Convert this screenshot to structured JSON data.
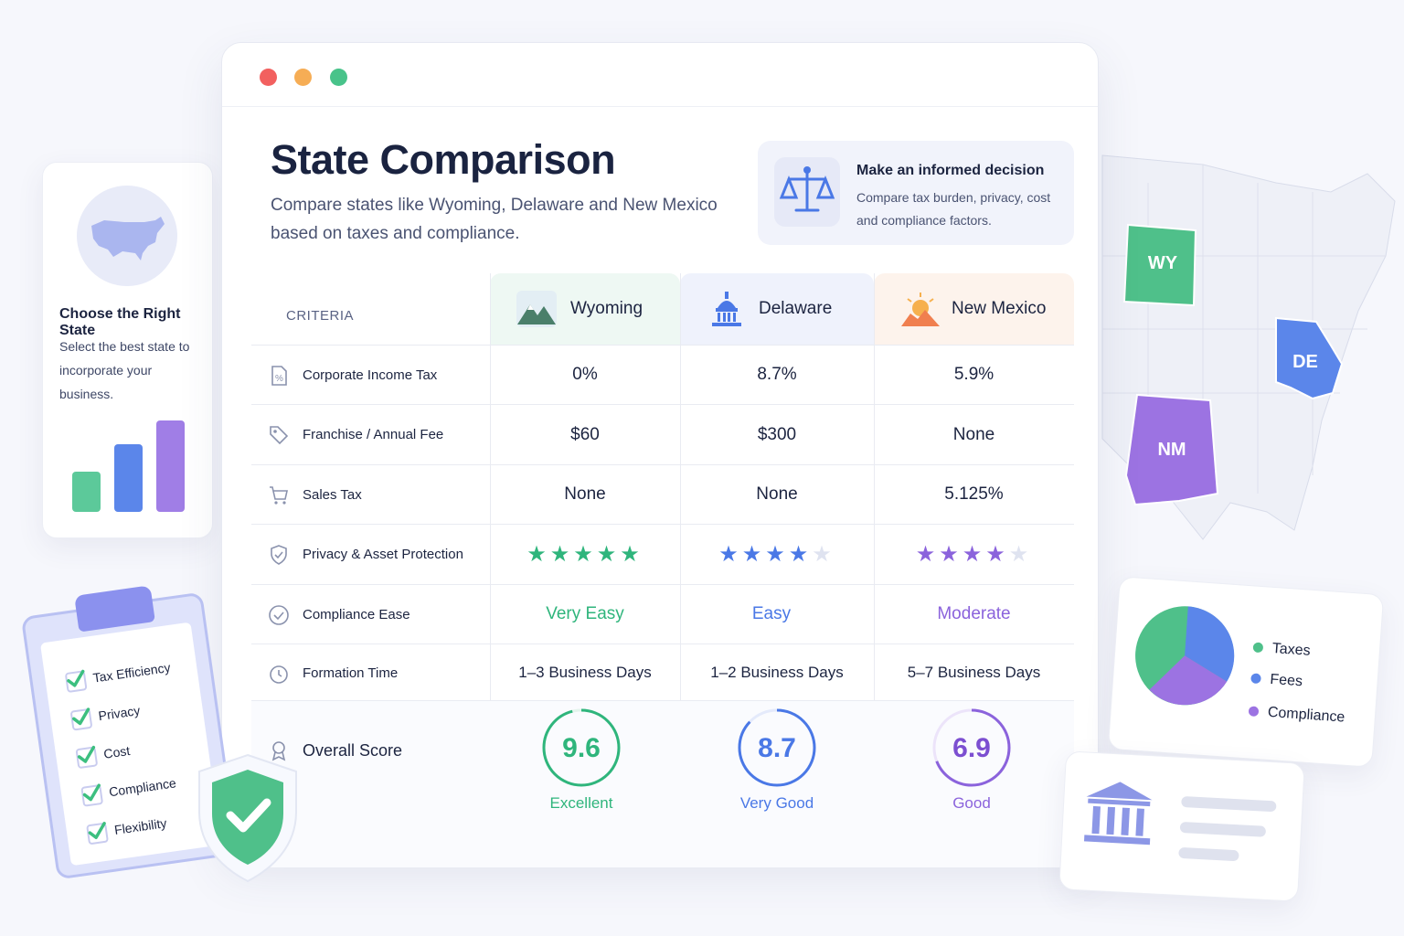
{
  "window": {
    "title": "State Comparison",
    "subtitle": "Compare states like Wyoming, Delaware and New Mexico based on taxes and compliance."
  },
  "info_card": {
    "title": "Make an informed decision",
    "text": "Compare tax burden, privacy, cost and compliance factors."
  },
  "table": {
    "criteria_header": "CRITERIA",
    "states": [
      {
        "name": "Wyoming",
        "color": "#2fb57c"
      },
      {
        "name": "Delaware",
        "color": "#4a78e6"
      },
      {
        "name": "New Mexico",
        "color": "#8b63dc"
      }
    ],
    "rows": [
      {
        "label": "Corporate Income Tax",
        "icon": "percent-doc-icon",
        "values": [
          "0%",
          "8.7%",
          "5.9%"
        ]
      },
      {
        "label": "Franchise / Annual Fee",
        "icon": "tag-icon",
        "values": [
          "$60",
          "$300",
          "None"
        ]
      },
      {
        "label": "Sales Tax",
        "icon": "cart-icon",
        "values": [
          "None",
          "None",
          "5.125%"
        ]
      },
      {
        "label": "Privacy & Asset Protection",
        "icon": "shield-check-icon",
        "ratings": [
          5,
          4,
          4
        ],
        "max_rating": 5
      },
      {
        "label": "Compliance Ease",
        "icon": "check-circle-icon",
        "values": [
          "Very Easy",
          "Easy",
          "Moderate"
        ]
      },
      {
        "label": "Formation Time",
        "icon": "clock-icon",
        "values": [
          "1–3 Business Days",
          "1–2 Business Days",
          "5–7 Business Days"
        ]
      }
    ],
    "overall": {
      "label": "Overall Score",
      "icon": "award-icon",
      "scores": [
        {
          "value": "9.6",
          "label": "Excellent",
          "progress": 0.96
        },
        {
          "value": "8.7",
          "label": "Very Good",
          "progress": 0.87
        },
        {
          "value": "6.9",
          "label": "Good",
          "progress": 0.69
        }
      ]
    }
  },
  "left_card": {
    "title": "Choose the Right State",
    "text": "Select the best state to incorporate your business."
  },
  "map": {
    "labels": [
      "WY",
      "DE",
      "NM"
    ]
  },
  "pie_legend": [
    "Taxes",
    "Fees",
    "Compliance"
  ],
  "checklist": [
    "Tax Efficiency",
    "Privacy",
    "Cost",
    "Compliance",
    "Flexibility"
  ]
}
